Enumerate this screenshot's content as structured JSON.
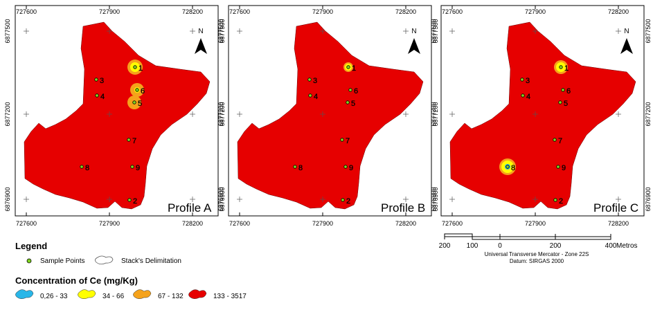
{
  "x_coords": [
    "727600",
    "727900",
    "728200"
  ],
  "y_coords": [
    "6877500",
    "6877200",
    "6876900"
  ],
  "north_label": "N",
  "sample_points": [
    "1",
    "2",
    "3",
    "4",
    "5",
    "6",
    "7",
    "8",
    "9"
  ],
  "panels": [
    {
      "title": "Profile A"
    },
    {
      "title": "Profile B"
    },
    {
      "title": "Profile C"
    }
  ],
  "legend": {
    "title": "Legend",
    "items": [
      "Sample Points",
      "Stack's Delimitation"
    ]
  },
  "concentration": {
    "title": "Concentration of Ce (mg/Kg)",
    "classes": [
      "0,26 - 33",
      "34 - 66",
      "67 - 132",
      "133 - 3517"
    ]
  },
  "scale_bar": {
    "labels": [
      "200",
      "100",
      "0",
      "200",
      "400"
    ],
    "unit": "Metros",
    "projection": "Universal Transverse Mercator - Zone 22S",
    "datum": "Datum: SIRGAS 2000"
  }
}
